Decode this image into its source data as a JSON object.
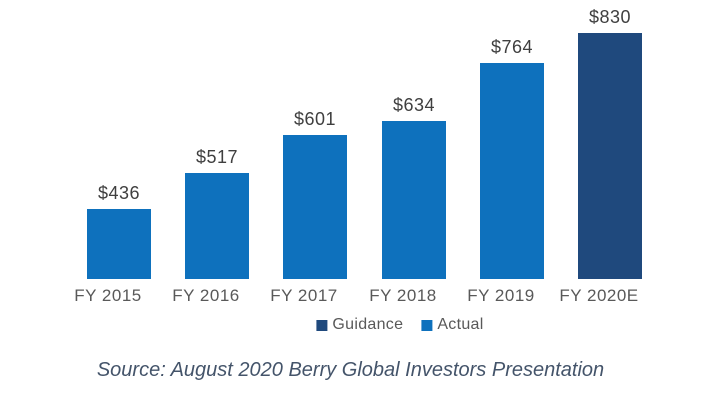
{
  "chart_data": {
    "type": "bar",
    "categories": [
      "FY 2015",
      "FY 2016",
      "FY 2017",
      "FY 2018",
      "FY 2019",
      "FY 2020E"
    ],
    "values": [
      436,
      517,
      601,
      634,
      764,
      830
    ],
    "value_labels": [
      "$436",
      "$517",
      "$601",
      "$634",
      "$764",
      "$830"
    ],
    "series_by_point": [
      "Actual",
      "Actual",
      "Actual",
      "Actual",
      "Actual",
      "Guidance"
    ],
    "legend": [
      {
        "label": "Guidance",
        "color": "#1F497D"
      },
      {
        "label": "Actual",
        "color": "#0E71BD"
      }
    ],
    "title": "",
    "xlabel": "",
    "ylabel": "",
    "ylim": [
      280,
      830
    ],
    "grid": false,
    "axis_line": false,
    "legend_position": "bottom"
  },
  "source_note": "Source: August 2020 Berry Global Investors Presentation",
  "colors": {
    "background": "#FFFFFF",
    "value_label": "#3F3F3F",
    "axis_label": "#595959",
    "legend_label": "#595959",
    "source_text": "#44546A"
  }
}
